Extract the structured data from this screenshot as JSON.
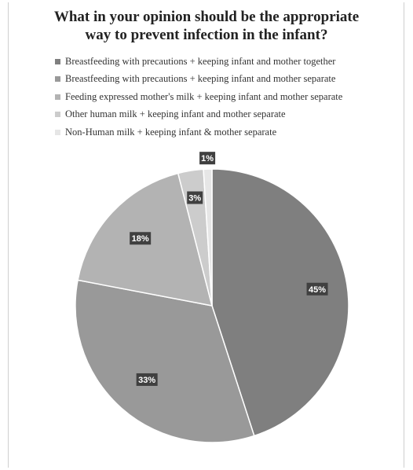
{
  "chart_data": {
    "type": "pie",
    "title": [
      "What in your opinion should be the appropriate",
      "way to prevent infection in the infant?"
    ],
    "legend_position": "top",
    "categories": [
      "Breastfeeding with precautions + keeping infant and mother together",
      "Breastfeeding with precautions + keeping infant and mother separate",
      "Feeding expressed mother's milk + keeping infant and mother separate",
      "Other human milk + keeping infant and mother separate",
      "Non-Human milk + keeping infant & mother separate"
    ],
    "values": [
      45,
      33,
      18,
      3,
      1
    ],
    "data_labels": [
      "45%",
      "33%",
      "18%",
      "3%",
      "1%"
    ],
    "colors": [
      "#7f7f7f",
      "#999999",
      "#b3b3b3",
      "#cccccc",
      "#e6e6e6"
    ]
  }
}
